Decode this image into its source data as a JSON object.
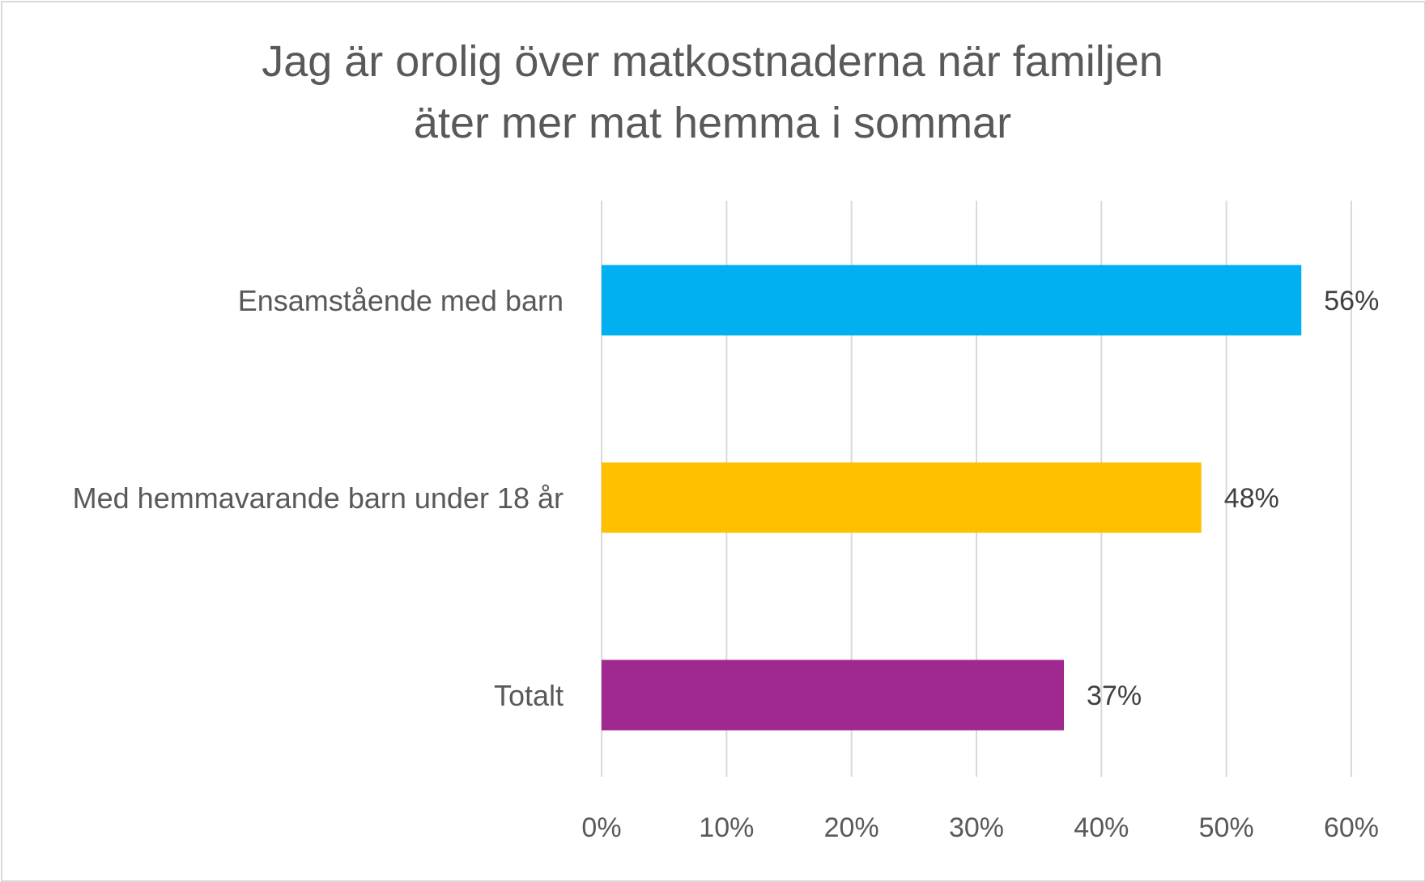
{
  "chart_data": {
    "type": "bar",
    "orientation": "horizontal",
    "title_lines": [
      "Jag är orolig över matkostnaderna när familjen",
      "äter mer mat hemma i sommar"
    ],
    "categories": [
      "Ensamstående med barn",
      "Med hemmavarande barn under 18 år",
      "Totalt"
    ],
    "values": [
      56,
      48,
      37
    ],
    "data_labels": [
      "56%",
      "48%",
      "37%"
    ],
    "colors": [
      "#00B0F0",
      "#FFC000",
      "#A0298F"
    ],
    "xlim": [
      0,
      60
    ],
    "x_ticks": [
      0,
      10,
      20,
      30,
      40,
      50,
      60
    ],
    "x_tick_labels": [
      "0%",
      "10%",
      "20%",
      "30%",
      "40%",
      "50%",
      "60%"
    ],
    "grid": true,
    "gridline_color": "#d9d9d9",
    "legend": "none"
  }
}
